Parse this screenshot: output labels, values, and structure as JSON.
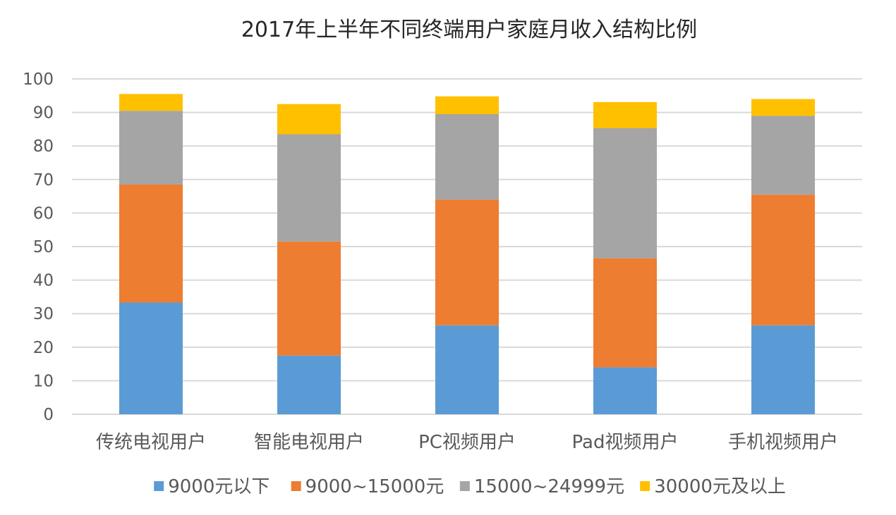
{
  "chart_data": {
    "type": "bar",
    "stacked": true,
    "title": "2017年上半年不同终端用户家庭月收入结构比例",
    "xlabel": "",
    "ylabel": "",
    "ylim": [
      0,
      100
    ],
    "yticks": [
      "0",
      "10",
      "20",
      "30",
      "40",
      "50",
      "60",
      "70",
      "80",
      "90",
      "100"
    ],
    "grid": true,
    "legend_position": "bottom",
    "categories": [
      "传统电视用户",
      "智能电视用户",
      "PC视频用户",
      "Pad视频用户",
      "手机视频用户"
    ],
    "series": [
      {
        "name": "9000元以下",
        "color": "#5B9BD5",
        "values": [
          33.3,
          17.5,
          26.5,
          14.0,
          26.5
        ]
      },
      {
        "name": "9000~15000元",
        "color": "#ED7D31",
        "values": [
          35.2,
          34.0,
          37.5,
          32.5,
          39.0
        ]
      },
      {
        "name": "15000~24999元",
        "color": "#A5A5A5",
        "values": [
          22.0,
          32.0,
          25.5,
          38.8,
          23.5
        ]
      },
      {
        "name": "30000元及以上",
        "color": "#FFC000",
        "values": [
          5.0,
          9.0,
          5.3,
          7.8,
          5.0
        ]
      }
    ]
  }
}
